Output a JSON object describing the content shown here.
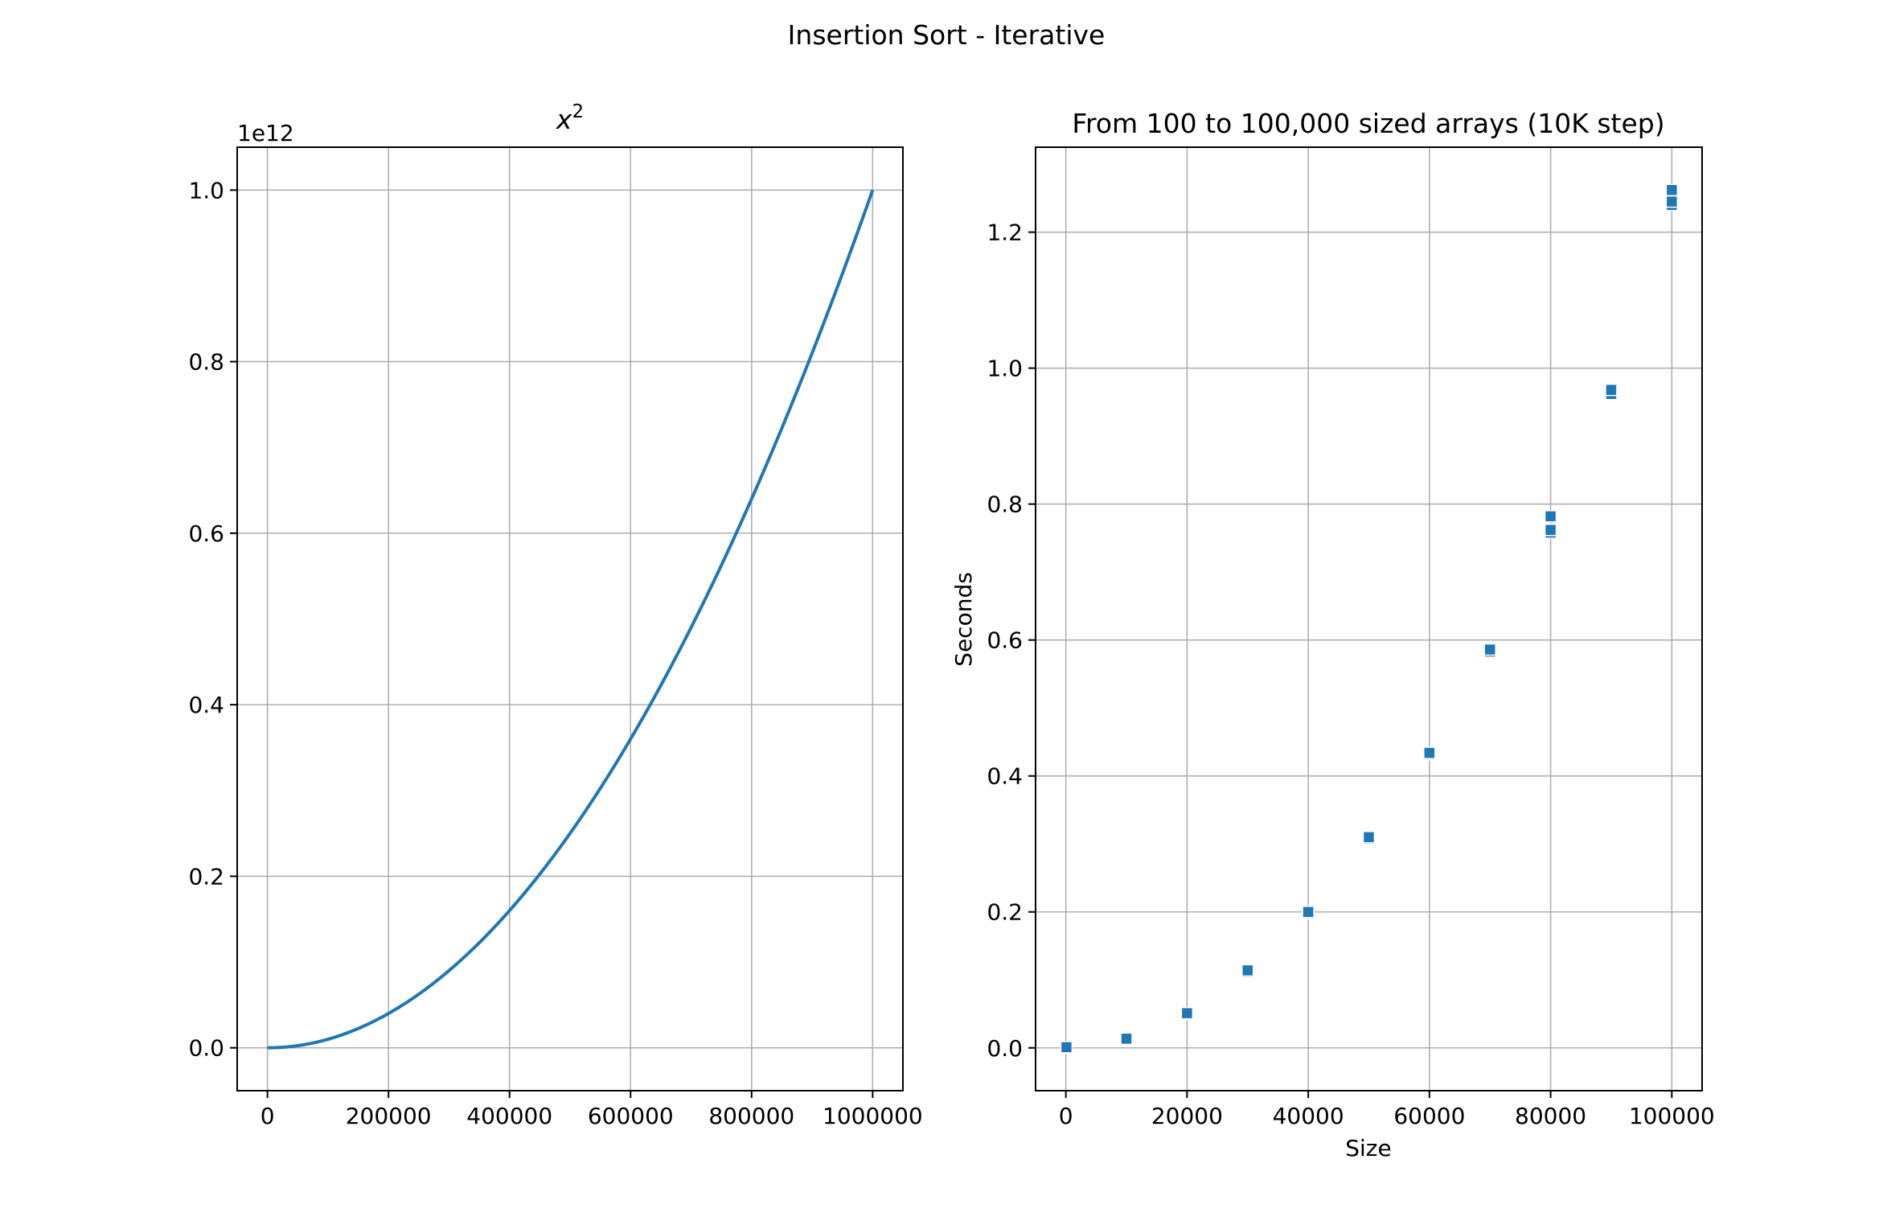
{
  "figure": {
    "suptitle": "Insertion Sort - Iterative"
  },
  "chart_data": [
    {
      "type": "line",
      "title": "x²",
      "title_base": "x",
      "title_sup": "2",
      "xlabel": "",
      "ylabel": "",
      "offset_label": "1e12",
      "xlim": [
        -50000,
        1050000
      ],
      "ylim": [
        -0.05,
        1.05
      ],
      "y_scale_note": "y values in units of 1e12",
      "x_ticks": [
        0,
        200000,
        400000,
        600000,
        800000,
        1000000
      ],
      "x_tick_labels": [
        "0",
        "200000",
        "400000",
        "600000",
        "800000",
        "1000000"
      ],
      "y_ticks": [
        0.0,
        0.2,
        0.4,
        0.6,
        0.8,
        1.0
      ],
      "y_tick_labels": [
        "0.0",
        "0.2",
        "0.4",
        "0.6",
        "0.8",
        "1.0"
      ],
      "grid": true,
      "color": "#1f77b4",
      "series": [
        {
          "function": "x^2",
          "x_range": [
            0,
            1000000
          ]
        }
      ]
    },
    {
      "type": "scatter",
      "title": "From 100 to 100,000 sized arrays (10K step)",
      "xlabel": "Size",
      "ylabel": "Seconds",
      "xlim": [
        -5000,
        105000
      ],
      "ylim": [
        -0.063,
        1.325
      ],
      "x_ticks": [
        0,
        20000,
        40000,
        60000,
        80000,
        100000
      ],
      "x_tick_labels": [
        "0",
        "20000",
        "40000",
        "60000",
        "80000",
        "100000"
      ],
      "y_ticks": [
        0.0,
        0.2,
        0.4,
        0.6,
        0.8,
        1.0,
        1.2
      ],
      "y_tick_labels": [
        "0.0",
        "0.2",
        "0.4",
        "0.6",
        "0.8",
        "1.0",
        "1.2"
      ],
      "grid": true,
      "color": "#1f77b4",
      "marker": "square",
      "points": [
        {
          "x": 100,
          "y": 0.0
        },
        {
          "x": 100,
          "y": 0.001
        },
        {
          "x": 10000,
          "y": 0.013
        },
        {
          "x": 10000,
          "y": 0.0135
        },
        {
          "x": 20000,
          "y": 0.05
        },
        {
          "x": 20000,
          "y": 0.051
        },
        {
          "x": 30000,
          "y": 0.112
        },
        {
          "x": 30000,
          "y": 0.114
        },
        {
          "x": 40000,
          "y": 0.198
        },
        {
          "x": 40000,
          "y": 0.2
        },
        {
          "x": 50000,
          "y": 0.308
        },
        {
          "x": 50000,
          "y": 0.31
        },
        {
          "x": 60000,
          "y": 0.432
        },
        {
          "x": 60000,
          "y": 0.434
        },
        {
          "x": 70000,
          "y": 0.583
        },
        {
          "x": 70000,
          "y": 0.586
        },
        {
          "x": 80000,
          "y": 0.758
        },
        {
          "x": 80000,
          "y": 0.762
        },
        {
          "x": 80000,
          "y": 0.782
        },
        {
          "x": 90000,
          "y": 0.962
        },
        {
          "x": 90000,
          "y": 0.968
        },
        {
          "x": 100000,
          "y": 1.24
        },
        {
          "x": 100000,
          "y": 1.245
        },
        {
          "x": 100000,
          "y": 1.262
        }
      ]
    }
  ]
}
